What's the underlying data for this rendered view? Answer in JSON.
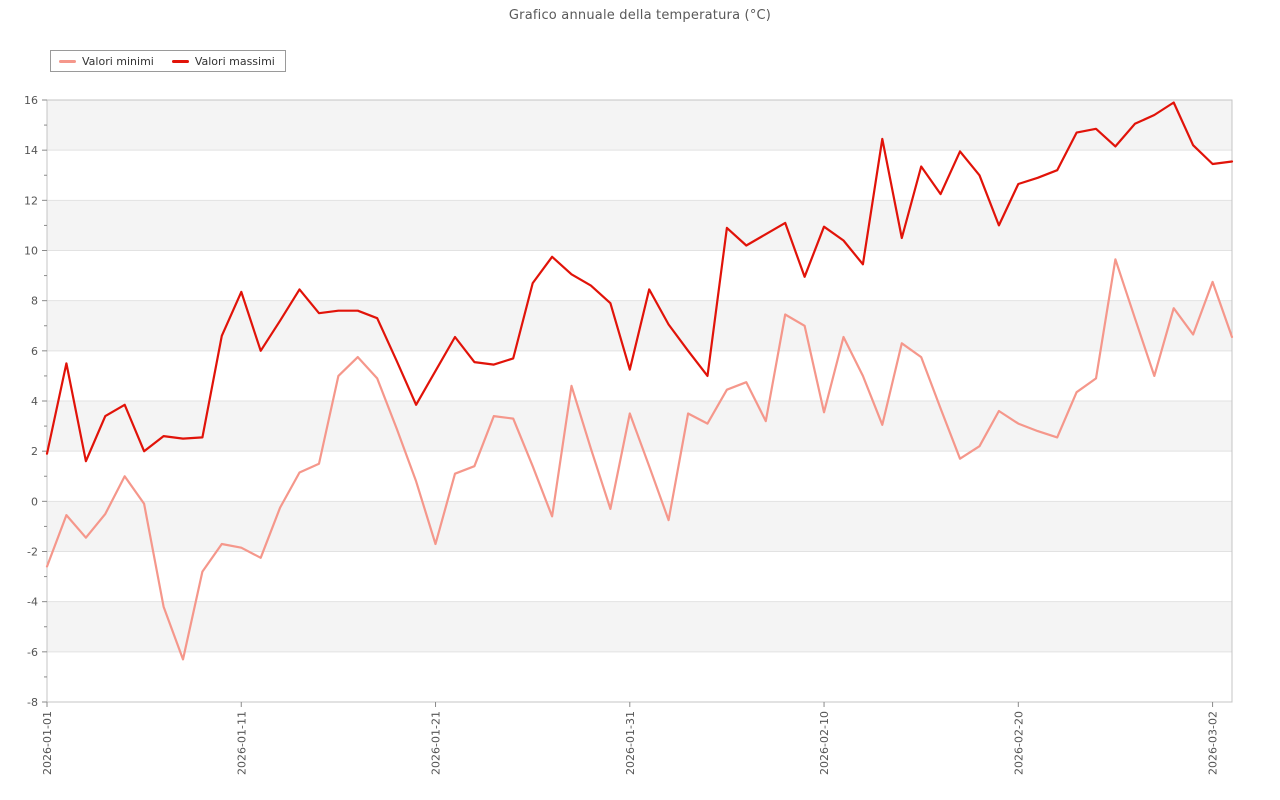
{
  "title": "Grafico annuale della temperatura (°C)",
  "chart_data": {
    "type": "line",
    "title": "Grafico annuale della temperatura (°C)",
    "xlabel": "",
    "ylabel": "",
    "ylim": [
      -8,
      16
    ],
    "grid": true,
    "band_fill_color": "#f4f4f4",
    "grid_color": "#e2e2e2",
    "spine_color": "#c4c4c4",
    "tick_color": "#8a8a8a",
    "tick_label_color": "#555555",
    "legend_position": "top-left",
    "y_major_ticks": [
      -8,
      -6,
      -4,
      -2,
      0,
      2,
      4,
      6,
      8,
      10,
      12,
      14,
      16
    ],
    "x_tick_indices": [
      0,
      10,
      20,
      30,
      40,
      50,
      60
    ],
    "x_tick_labels": [
      "2026-01-01",
      "2026-01-11",
      "2026-01-21",
      "2026-01-31",
      "2026-02-10",
      "2026-02-20",
      "2026-03-02"
    ],
    "x": [
      "2026-01-01",
      "2026-01-02",
      "2026-01-03",
      "2026-01-04",
      "2026-01-05",
      "2026-01-06",
      "2026-01-07",
      "2026-01-08",
      "2026-01-09",
      "2026-01-10",
      "2026-01-11",
      "2026-01-12",
      "2026-01-13",
      "2026-01-14",
      "2026-01-15",
      "2026-01-16",
      "2026-01-17",
      "2026-01-18",
      "2026-01-19",
      "2026-01-20",
      "2026-01-21",
      "2026-01-22",
      "2026-01-23",
      "2026-01-24",
      "2026-01-25",
      "2026-01-26",
      "2026-01-27",
      "2026-01-28",
      "2026-01-29",
      "2026-01-30",
      "2026-01-31",
      "2026-02-01",
      "2026-02-02",
      "2026-02-03",
      "2026-02-04",
      "2026-02-05",
      "2026-02-06",
      "2026-02-07",
      "2026-02-08",
      "2026-02-09",
      "2026-02-10",
      "2026-02-11",
      "2026-02-12",
      "2026-02-13",
      "2026-02-14",
      "2026-02-15",
      "2026-02-16",
      "2026-02-17",
      "2026-02-18",
      "2026-02-19",
      "2026-02-20",
      "2026-02-21",
      "2026-02-22",
      "2026-02-23",
      "2026-02-24",
      "2026-02-25",
      "2026-02-26",
      "2026-02-27",
      "2026-02-28",
      "2026-03-01",
      "2026-03-02",
      "2026-03-03"
    ],
    "series": [
      {
        "name": "Valori minimi",
        "color": "#f5978b",
        "values": [
          -2.6,
          -0.55,
          -1.45,
          -0.5,
          1.0,
          -0.1,
          -4.2,
          -6.3,
          -2.8,
          -1.7,
          -1.85,
          -2.25,
          -0.25,
          1.15,
          1.5,
          5.0,
          5.75,
          4.9,
          2.9,
          0.8,
          -1.7,
          1.1,
          1.4,
          3.4,
          3.3,
          1.4,
          -0.6,
          4.6,
          2.1,
          -0.3,
          3.5,
          1.4,
          -0.75,
          3.5,
          3.1,
          4.45,
          4.75,
          3.2,
          7.45,
          7.0,
          3.55,
          6.55,
          5.0,
          3.05,
          6.3,
          5.75,
          3.7,
          1.7,
          2.2,
          3.6,
          3.1,
          2.8,
          2.55,
          4.35,
          4.9,
          9.65,
          7.3,
          5.0,
          7.7,
          6.65,
          8.75,
          6.55
        ]
      },
      {
        "name": "Valori massimi",
        "color": "#e11309",
        "values": [
          1.9,
          5.5,
          1.6,
          3.4,
          3.85,
          2.0,
          2.6,
          2.5,
          2.55,
          6.6,
          8.35,
          6.0,
          7.2,
          8.45,
          7.5,
          7.6,
          7.6,
          7.3,
          5.6,
          3.85,
          5.2,
          6.55,
          5.55,
          5.45,
          5.7,
          8.7,
          9.75,
          9.05,
          8.6,
          7.9,
          5.25,
          8.45,
          7.05,
          6.0,
          5.0,
          10.9,
          10.2,
          10.65,
          11.1,
          8.95,
          10.95,
          10.4,
          9.45,
          14.45,
          10.5,
          13.35,
          12.25,
          13.95,
          13.0,
          11.0,
          12.65,
          12.9,
          13.2,
          14.7,
          14.85,
          14.15,
          15.05,
          15.4,
          15.9,
          14.2,
          13.45,
          13.55
        ]
      }
    ]
  }
}
